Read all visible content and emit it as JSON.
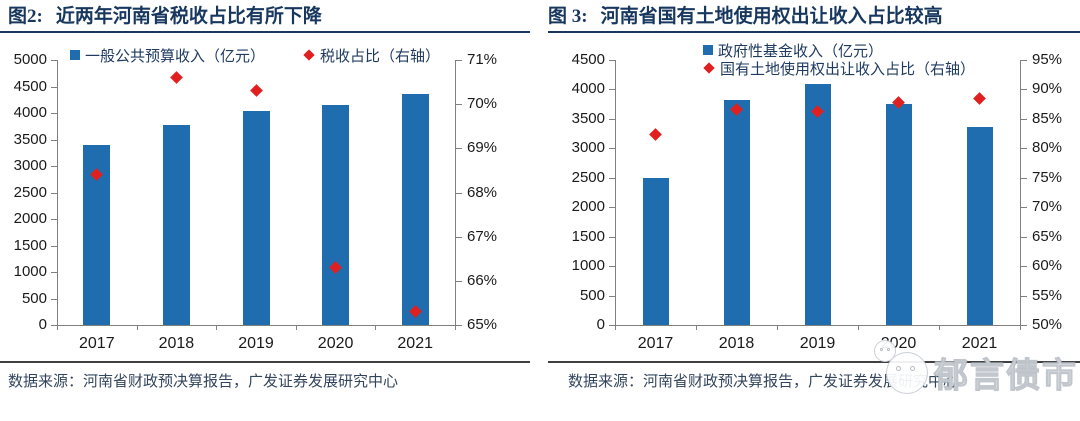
{
  "colors": {
    "bar_blue": "#1F6DAE",
    "point_red": "#E02020",
    "title_navy": "#17375E",
    "legend_text": "#1F3B60",
    "axis_line": "#808080",
    "tick_text": "#1a1a1a",
    "source_text": "#33455C",
    "bottom_rule": "#404040"
  },
  "watermark": {
    "text": "郁言债市",
    "icon": "wechat-icon"
  },
  "charts": [
    {
      "fig_label": "图2:",
      "title": "近两年河南省税收占比有所下降",
      "source": "数据来源：河南省财政预决算报告，广发证券发展研究中心",
      "chart_data": {
        "type": "bar",
        "subtype": "dual-axis bar + scatter markers",
        "categories": [
          "2017",
          "2018",
          "2019",
          "2020",
          "2021"
        ],
        "series": [
          {
            "name": "一般公共预算收入（亿元）",
            "type": "bar",
            "axis": "left",
            "values": [
              3400,
              3770,
              4040,
              4160,
              4350
            ]
          },
          {
            "name": "税收占比（右轴）",
            "type": "scatter",
            "axis": "right",
            "values": [
              68.4,
              70.6,
              70.3,
              66.3,
              65.3
            ]
          }
        ],
        "left_axis": {
          "min": 0,
          "max": 5000,
          "step": 500,
          "suffix": ""
        },
        "right_axis": {
          "min": 65,
          "max": 71,
          "step": 1,
          "suffix": "%"
        },
        "grid": false,
        "legend_position": "top, single row inside plot"
      }
    },
    {
      "fig_label": "图 3:",
      "title": "河南省国有土地使用权出让收入占比较高",
      "source": "数据来源：河南省财政预决算报告，广发证券发展研究中心",
      "chart_data": {
        "type": "bar",
        "subtype": "dual-axis bar + scatter markers",
        "categories": [
          "2017",
          "2018",
          "2019",
          "2020",
          "2021"
        ],
        "series": [
          {
            "name": "政府性基金收入（亿元）",
            "type": "bar",
            "axis": "left",
            "values": [
              2500,
              3820,
              4090,
              3750,
              3370
            ]
          },
          {
            "name": "国有土地使用权出让收入占比（右轴）",
            "type": "scatter",
            "axis": "right",
            "values": [
              82.4,
              86.6,
              86.3,
              87.7,
              88.4
            ]
          }
        ],
        "left_axis": {
          "min": 0,
          "max": 4500,
          "step": 500,
          "suffix": ""
        },
        "right_axis": {
          "min": 50,
          "max": 95,
          "step": 5,
          "suffix": "%"
        },
        "grid": false,
        "legend_position": "top, two stacked rows inside plot"
      }
    }
  ]
}
